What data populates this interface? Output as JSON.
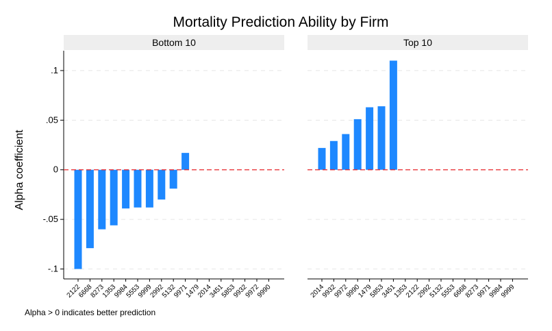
{
  "chart_data": {
    "type": "bar",
    "title": "Mortality Prediction Ability by Firm",
    "ylabel": "Alpha coefficient",
    "xlabel": "",
    "note": "Alpha > 0 indicates better prediction",
    "ylim": [
      -0.11,
      0.12
    ],
    "yticks": [
      {
        "value": 0.1,
        "label": ".1"
      },
      {
        "value": 0.05,
        "label": ".05"
      },
      {
        "value": 0,
        "label": "0"
      },
      {
        "value": -0.05,
        "label": "-.05"
      },
      {
        "value": -0.1,
        "label": "-.1"
      }
    ],
    "grid": true,
    "reference_line": {
      "value": 0,
      "color": "#e8262a",
      "style": "dashed"
    },
    "bar_color": "#1e88ff",
    "categories": [
      "2122",
      "6668",
      "8273",
      "1353",
      "9984",
      "5553",
      "9999",
      "2992",
      "5132",
      "9971",
      "1479",
      "2014",
      "3451",
      "5853",
      "9932",
      "9972",
      "9990"
    ],
    "panels": [
      {
        "label": "Bottom 10",
        "categories": [
          "2122",
          "6668",
          "8273",
          "1353",
          "9984",
          "5553",
          "9999",
          "2992",
          "5132",
          "9971",
          "1479",
          "2014",
          "3451",
          "5853",
          "9932",
          "9972",
          "9990"
        ],
        "values": [
          -0.1,
          -0.079,
          -0.06,
          -0.056,
          -0.039,
          -0.038,
          -0.038,
          -0.03,
          -0.019,
          0.017,
          null,
          null,
          null,
          null,
          null,
          null,
          null
        ]
      },
      {
        "label": "Top 10",
        "categories": [
          "2014",
          "9932",
          "9972",
          "9990",
          "1479",
          "5853",
          "3451",
          "1353",
          "2122",
          "2992",
          "5132",
          "5553",
          "6668",
          "8273",
          "9971",
          "9984",
          "9999"
        ],
        "values": [
          0.022,
          0.029,
          0.036,
          0.051,
          0.063,
          0.064,
          0.11,
          null,
          null,
          null,
          null,
          null,
          null,
          null,
          null,
          null,
          null
        ]
      }
    ]
  }
}
